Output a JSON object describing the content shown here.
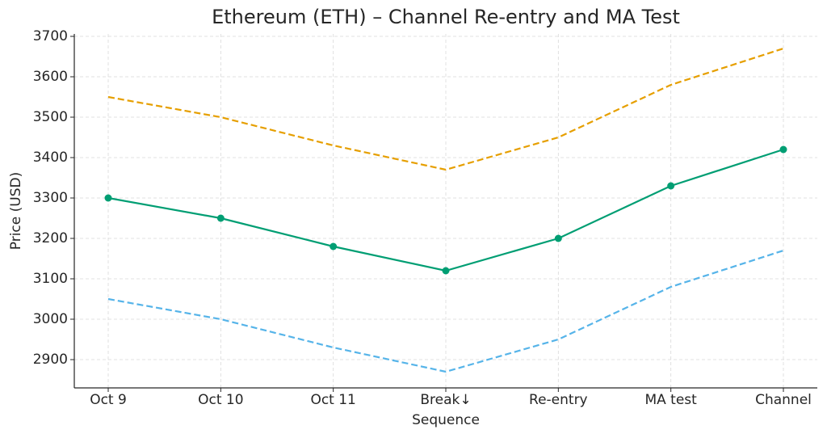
{
  "chart_data": {
    "type": "line",
    "title": "Ethereum (ETH) – Channel Re-entry and MA Test",
    "x_label": "Sequence",
    "y_label": "Price (USD)",
    "categories": [
      "Oct 9",
      "Oct 10",
      "Oct 11",
      "Break↓",
      "Re-entry",
      "MA test",
      "Channel"
    ],
    "series": [
      {
        "color": "#e69f00",
        "style": "dashed",
        "markers": false,
        "values": [
          3550,
          3500,
          3430,
          3370,
          3450,
          3580,
          3670
        ]
      },
      {
        "color": "#009e73",
        "style": "solid",
        "markers": true,
        "values": [
          3300,
          3250,
          3180,
          3120,
          3200,
          3330,
          3420
        ]
      },
      {
        "color": "#56b4e9",
        "style": "dashed",
        "markers": false,
        "values": [
          3050,
          3000,
          2930,
          2870,
          2950,
          3080,
          3170
        ]
      }
    ],
    "ylim": [
      2830,
      3706
    ],
    "yticks": [
      2900,
      3000,
      3100,
      3200,
      3300,
      3400,
      3500,
      3600,
      3700
    ],
    "grid": true
  }
}
